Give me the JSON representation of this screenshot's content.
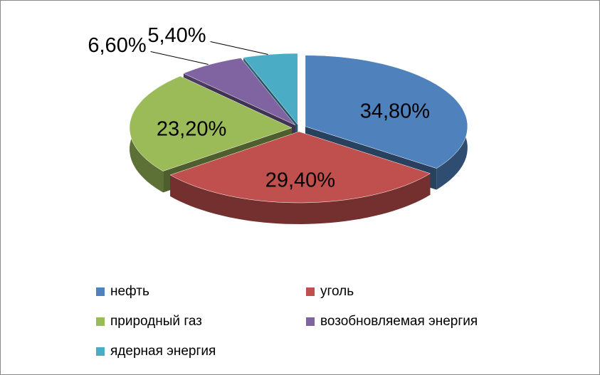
{
  "chart_data": {
    "type": "pie",
    "categories": [
      "нефть",
      "уголь",
      "природный газ",
      "возобновляемая энергия",
      "ядерная энергия"
    ],
    "values": [
      34.8,
      29.4,
      23.2,
      6.6,
      5.4
    ],
    "value_labels": [
      "34,80%",
      "29,40%",
      "23,20%",
      "6,60%",
      "5,40%"
    ],
    "colors": [
      "#4f81bd",
      "#c0504d",
      "#9bbb59",
      "#8064a2",
      "#4bacc6"
    ],
    "legend": "bottom"
  }
}
